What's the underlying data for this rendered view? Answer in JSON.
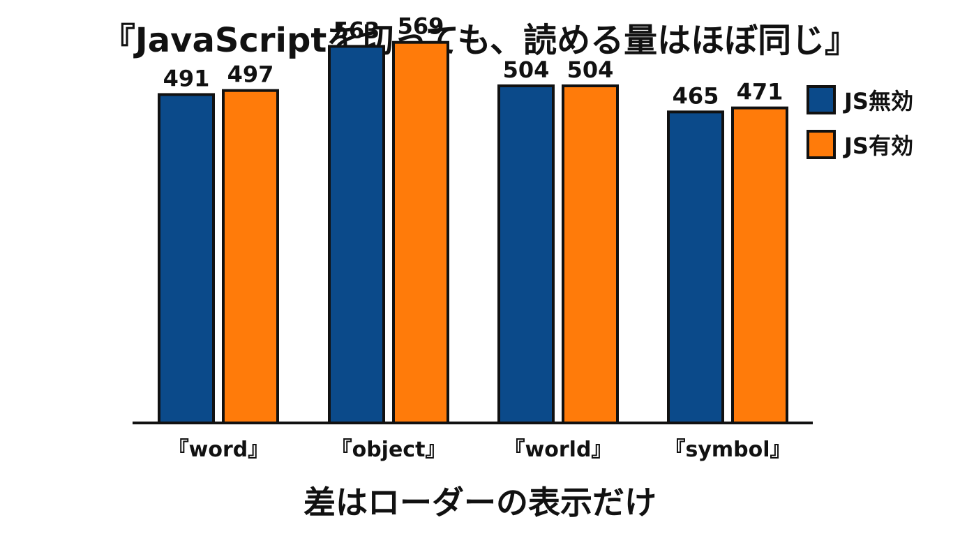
{
  "chart_data": {
    "type": "bar",
    "title": "『JavaScriptを切っても、読める量はほぼ同じ』",
    "footer": "差はローダーの表示だけ",
    "categories": [
      "『word』",
      "『object』",
      "『world』",
      "『symbol』"
    ],
    "series": [
      {
        "name": "JS無効",
        "color": "#0b4a8a",
        "values": [
          491,
          563,
          504,
          465
        ]
      },
      {
        "name": "JS有効",
        "color": "#ff7b0a",
        "values": [
          497,
          569,
          504,
          471
        ]
      }
    ],
    "ylim": [
      0,
      600
    ],
    "grid": false,
    "legend": "top-right"
  }
}
